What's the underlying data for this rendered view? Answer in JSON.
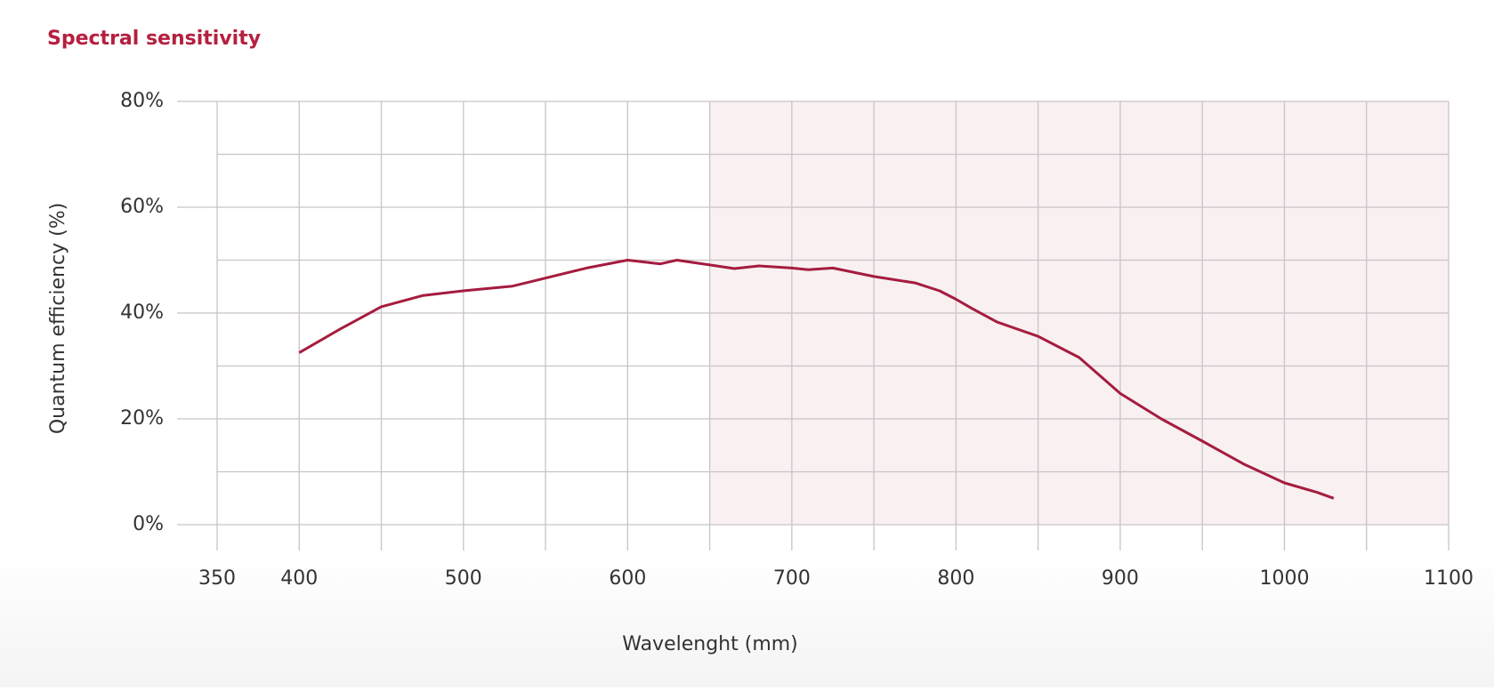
{
  "chart_data": {
    "type": "line",
    "title": "Spectral sensitivity",
    "x_label": "Wavelenght (mm)",
    "y_label": "Quantum efficiency (%)",
    "x": [
      400,
      425,
      450,
      475,
      500,
      530,
      550,
      575,
      600,
      620,
      630,
      650,
      665,
      680,
      700,
      710,
      725,
      750,
      775,
      790,
      800,
      810,
      825,
      850,
      875,
      900,
      925,
      950,
      975,
      1000,
      1020,
      1030
    ],
    "series": [
      {
        "name": "Quantum efficiency",
        "color": "#a51c3e",
        "values": [
          32.5,
          37,
          41.2,
          43.3,
          44.2,
          45.1,
          46.6,
          48.5,
          50,
          49.3,
          50,
          49.1,
          48.4,
          48.9,
          48.5,
          48.2,
          48.5,
          46.9,
          45.7,
          44.2,
          42.6,
          40.8,
          38.3,
          35.6,
          31.6,
          24.8,
          20,
          15.8,
          11.5,
          7.9,
          6.1,
          5
        ]
      }
    ],
    "xlim": [
      350,
      1100
    ],
    "xticks": [
      350,
      400,
      500,
      600,
      700,
      800,
      900,
      1000,
      1100
    ],
    "xminorticks": [
      450,
      550,
      650,
      750,
      850,
      950,
      1050
    ],
    "ylim": [
      0,
      80
    ],
    "yticks": [
      {
        "value": 0,
        "label": "0%"
      },
      {
        "value": 20,
        "label": "20%"
      },
      {
        "value": 40,
        "label": "40%"
      },
      {
        "value": 60,
        "label": "60%"
      },
      {
        "value": 80,
        "label": "80%"
      }
    ],
    "yminorticks": [
      10,
      30,
      50,
      70
    ],
    "highlight": {
      "xlim": [
        650,
        1100
      ],
      "color": "#f8f0f1"
    },
    "grid": true
  }
}
